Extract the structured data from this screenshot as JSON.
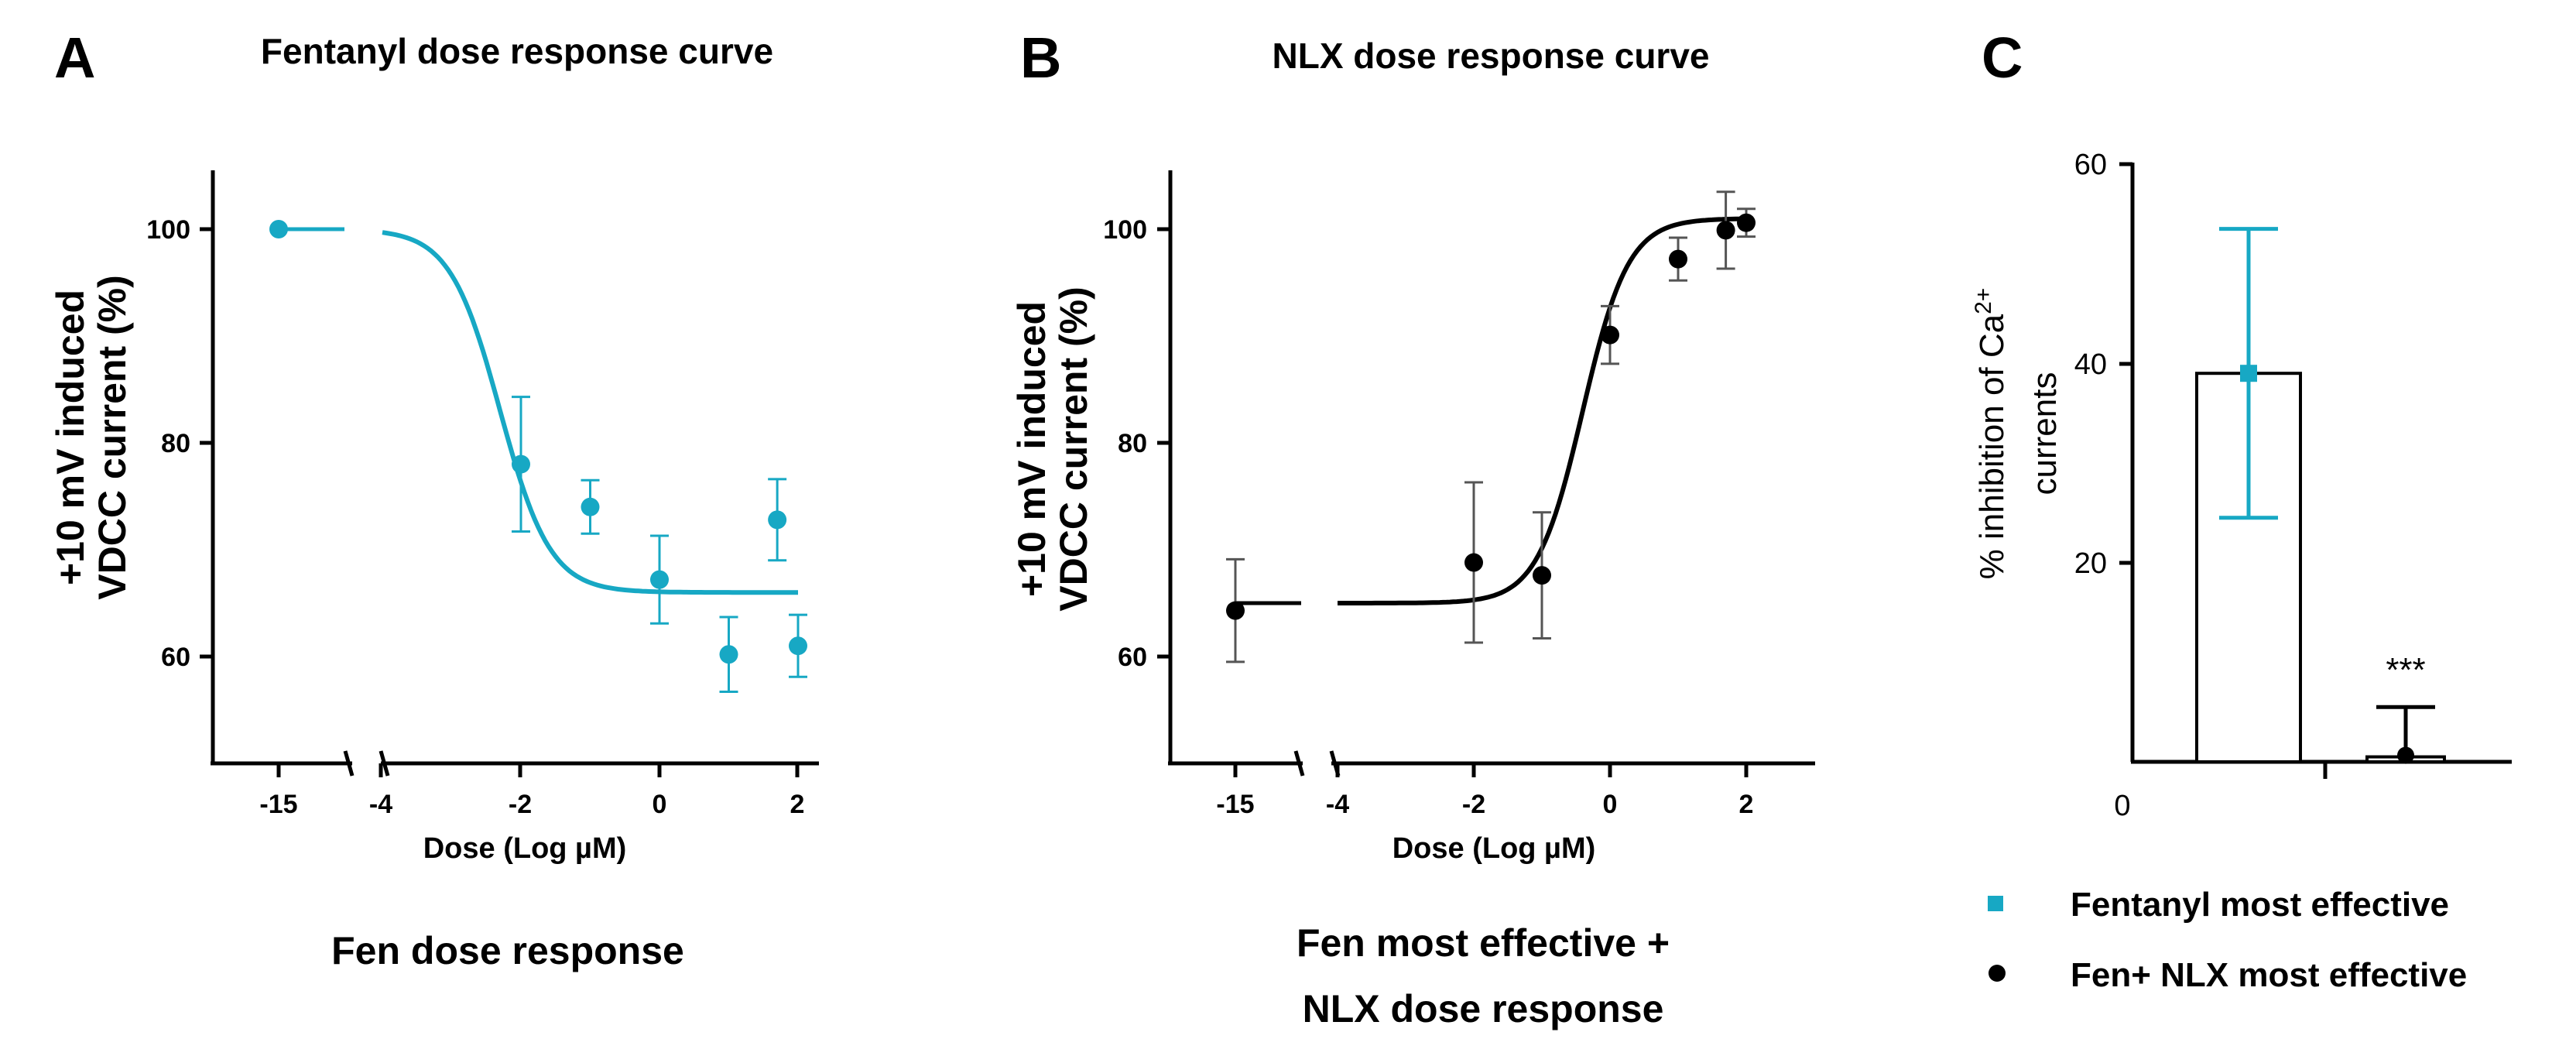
{
  "chart_data": [
    {
      "panel": "A",
      "type": "scatter",
      "title": "Fentanyl dose response curve",
      "xlabel": "Dose (Log µM)",
      "ylabel_line1": "+10 mV induced",
      "ylabel_line2": "VDCC current (%)",
      "caption": "Fen dose response",
      "color": "#17a8c4",
      "x_ticks": [
        "-15",
        "-4",
        "-2",
        "0",
        "2"
      ],
      "y_ticks": [
        "60",
        "80",
        "100"
      ],
      "ylim": [
        50,
        105
      ],
      "break_x": -15,
      "points": [
        {
          "x": -15,
          "y": 100,
          "err": 0
        },
        {
          "x": -2,
          "y": 78,
          "err": 6.3
        },
        {
          "x": -1,
          "y": 74,
          "err": 2.5
        },
        {
          "x": 0,
          "y": 67.2,
          "err": 4.1
        },
        {
          "x": 1,
          "y": 60.2,
          "err": 3.5
        },
        {
          "x": 1.7,
          "y": 72.8,
          "err": 3.8
        },
        {
          "x": 2,
          "y": 61,
          "err": 2.9
        }
      ],
      "fit": {
        "top": 100,
        "bottom": 66,
        "logEC50": -2.3,
        "hill": -1.2
      }
    },
    {
      "panel": "B",
      "type": "scatter",
      "title": "NLX dose response curve",
      "xlabel": "Dose (Log µM)",
      "ylabel_line1": "+10 mV induced",
      "ylabel_line2": "VDCC current (%)",
      "caption_line1": "Fen most effective +",
      "caption_line2": "NLX dose response",
      "color": "#000000",
      "x_ticks": [
        "-15",
        "-4",
        "-2",
        "0",
        "2"
      ],
      "y_ticks": [
        "60",
        "80",
        "100"
      ],
      "ylim": [
        50,
        105
      ],
      "points": [
        {
          "x": -15,
          "y": 64.3,
          "err": 4.8
        },
        {
          "x": -2,
          "y": 68.8,
          "err": 7.5
        },
        {
          "x": -1,
          "y": 67.6,
          "err": 5.9
        },
        {
          "x": 0,
          "y": 90.1,
          "err": 2.7
        },
        {
          "x": 1,
          "y": 97.2,
          "err": 2.0
        },
        {
          "x": 1.7,
          "y": 99.9,
          "err": 3.6
        },
        {
          "x": 2,
          "y": 100.6,
          "err": 1.3
        }
      ],
      "fit": {
        "top": 101,
        "bottom": 65,
        "logEC50": -0.4,
        "hill": 1.3
      }
    },
    {
      "panel": "C",
      "type": "bar",
      "ylabel_line1": "% inhibition of Ca",
      "ylabel_sup": "2+",
      "ylabel_line2": "currents",
      "y_ticks": [
        "0",
        "20",
        "40",
        "60"
      ],
      "ylim": [
        0,
        60
      ],
      "categories": [
        "Fentanyl most effective",
        "Fen+ NLX most effective"
      ],
      "values": [
        39,
        0.5
      ],
      "errors": [
        14.5,
        5
      ],
      "marker_colors": [
        "#17a8c4",
        "#000000"
      ],
      "significance": "***"
    }
  ]
}
